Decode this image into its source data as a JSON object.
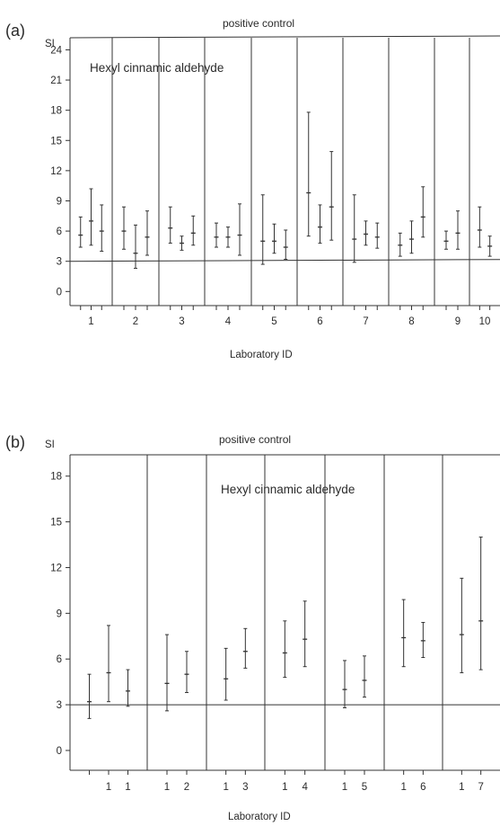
{
  "chart_data": [
    {
      "panel_label": "(a)",
      "type": "error-bar",
      "ylabel": "SI",
      "xlabel": "Laboratory ID",
      "title": "positive control",
      "annotation": "Hexyl cinnamic aldehyde",
      "ylim": [
        -1,
        26
      ],
      "yticks": [
        0,
        3,
        6,
        9,
        12,
        15,
        18,
        21,
        24
      ],
      "reference_line": 3,
      "groups": [
        {
          "label": "1",
          "points": [
            {
              "mean": 5.6,
              "low": 4.4,
              "high": 7.4
            },
            {
              "mean": 7.0,
              "low": 4.6,
              "high": 10.2
            },
            {
              "mean": 6.0,
              "low": 4.0,
              "high": 8.6
            }
          ]
        },
        {
          "label": "2",
          "points": [
            {
              "mean": 6.0,
              "low": 4.2,
              "high": 8.4
            },
            {
              "mean": 3.8,
              "low": 2.3,
              "high": 6.6
            },
            {
              "mean": 5.4,
              "low": 3.6,
              "high": 8.0
            }
          ]
        },
        {
          "label": "3",
          "points": [
            {
              "mean": 6.3,
              "low": 4.8,
              "high": 8.4
            },
            {
              "mean": 4.8,
              "low": 4.1,
              "high": 5.5
            },
            {
              "mean": 5.8,
              "low": 4.6,
              "high": 7.5
            }
          ]
        },
        {
          "label": "4",
          "points": [
            {
              "mean": 5.4,
              "low": 4.4,
              "high": 6.8
            },
            {
              "mean": 5.4,
              "low": 4.4,
              "high": 6.4
            },
            {
              "mean": 5.6,
              "low": 3.6,
              "high": 8.7
            }
          ]
        },
        {
          "label": "5",
          "points": [
            {
              "mean": 5.0,
              "low": 2.7,
              "high": 9.6
            },
            {
              "mean": 5.0,
              "low": 3.8,
              "high": 6.7
            },
            {
              "mean": 4.4,
              "low": 3.2,
              "high": 6.1
            }
          ]
        },
        {
          "label": "6",
          "points": [
            {
              "mean": 9.8,
              "low": 5.5,
              "high": 17.8
            },
            {
              "mean": 6.4,
              "low": 4.8,
              "high": 8.6
            },
            {
              "mean": 8.4,
              "low": 5.1,
              "high": 13.9
            }
          ]
        },
        {
          "label": "7",
          "points": [
            {
              "mean": 5.2,
              "low": 2.9,
              "high": 9.6
            },
            {
              "mean": 5.7,
              "low": 4.6,
              "high": 7.0
            },
            {
              "mean": 5.4,
              "low": 4.3,
              "high": 6.8
            }
          ]
        },
        {
          "label": "8",
          "points": [
            {
              "mean": 4.6,
              "low": 3.5,
              "high": 5.8
            },
            {
              "mean": 5.2,
              "low": 3.8,
              "high": 7.0
            },
            {
              "mean": 7.4,
              "low": 5.4,
              "high": 10.4
            }
          ]
        },
        {
          "label": "9",
          "points": [
            {
              "mean": 5.0,
              "low": 4.2,
              "high": 6.0
            },
            {
              "mean": 5.8,
              "low": 4.2,
              "high": 8.0
            }
          ]
        },
        {
          "label": "10",
          "points": [
            {
              "mean": 6.1,
              "low": 4.4,
              "high": 8.4
            },
            {
              "mean": 4.5,
              "low": 3.5,
              "high": 5.5
            }
          ]
        }
      ]
    },
    {
      "panel_label": "(b)",
      "type": "error-bar",
      "ylabel": "SI",
      "xlabel": "Laboratory ID",
      "title": "positive control",
      "annotation": "Hexyl cinnamic aldehyde",
      "ylim": [
        -1.3,
        19
      ],
      "yticks": [
        0,
        3,
        6,
        9,
        12,
        15,
        18
      ],
      "reference_line": 3,
      "groups": [
        {
          "label": "1 1",
          "points": [
            {
              "mean": 3.2,
              "low": 2.1,
              "high": 5.0
            },
            {
              "mean": 5.1,
              "low": 3.2,
              "high": 8.2
            },
            {
              "mean": 3.9,
              "low": 2.9,
              "high": 5.3
            }
          ]
        },
        {
          "label": "1 2",
          "points": [
            {
              "mean": 4.4,
              "low": 2.6,
              "high": 7.6
            },
            {
              "mean": 5.0,
              "low": 3.8,
              "high": 6.5
            }
          ]
        },
        {
          "label": "1 3",
          "points": [
            {
              "mean": 4.7,
              "low": 3.3,
              "high": 6.7
            },
            {
              "mean": 6.5,
              "low": 5.4,
              "high": 8.0
            }
          ]
        },
        {
          "label": "1 4",
          "points": [
            {
              "mean": 6.4,
              "low": 4.8,
              "high": 8.5
            },
            {
              "mean": 7.3,
              "low": 5.5,
              "high": 9.8
            }
          ]
        },
        {
          "label": "1 5",
          "points": [
            {
              "mean": 4.0,
              "low": 2.8,
              "high": 5.9
            },
            {
              "mean": 4.6,
              "low": 3.5,
              "high": 6.2
            }
          ]
        },
        {
          "label": "1 6",
          "points": [
            {
              "mean": 7.4,
              "low": 5.5,
              "high": 9.9
            },
            {
              "mean": 7.2,
              "low": 6.1,
              "high": 8.4
            }
          ]
        },
        {
          "label": "1 7",
          "points": [
            {
              "mean": 7.6,
              "low": 5.1,
              "high": 11.3
            },
            {
              "mean": 8.5,
              "low": 5.3,
              "high": 14.0
            }
          ]
        }
      ]
    }
  ]
}
